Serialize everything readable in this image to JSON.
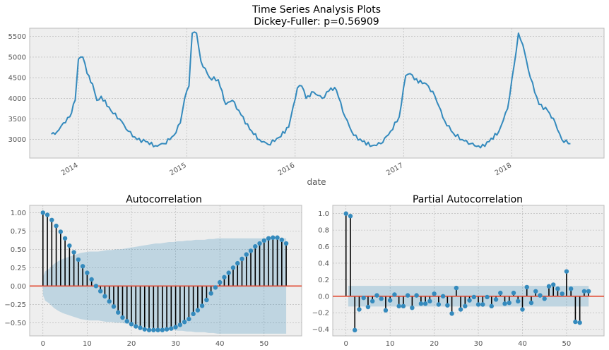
{
  "chart_data": [
    {
      "type": "line",
      "title": "Time Series Analysis Plots",
      "subtitle": "Dickey-Fuller: p=0.56909",
      "xlabel": "date",
      "ylabel": "",
      "grid": true,
      "ylim": [
        2550,
        5700
      ],
      "xlim": [
        2013.55,
        2018.85
      ],
      "x_ticks": [
        2014,
        2015,
        2016,
        2017,
        2018
      ],
      "x_tick_labels": [
        "2014",
        "2015",
        "2016",
        "2017",
        "2018"
      ],
      "y_ticks": [
        3000,
        3500,
        4000,
        4500,
        5000,
        5500
      ],
      "y_tick_labels": [
        "3000",
        "3500",
        "4000",
        "4500",
        "5000",
        "5500"
      ],
      "color": "#348ABD",
      "keypoints": [
        [
          2013.75,
          3130
        ],
        [
          2013.8,
          3180
        ],
        [
          2013.86,
          3400
        ],
        [
          2013.92,
          3550
        ],
        [
          2013.97,
          3950
        ],
        [
          2014.0,
          4950
        ],
        [
          2014.04,
          5000
        ],
        [
          2014.08,
          4600
        ],
        [
          2014.13,
          4350
        ],
        [
          2014.17,
          3950
        ],
        [
          2014.21,
          4050
        ],
        [
          2014.3,
          3700
        ],
        [
          2014.38,
          3500
        ],
        [
          2014.46,
          3200
        ],
        [
          2014.54,
          3000
        ],
        [
          2014.62,
          2950
        ],
        [
          2014.71,
          2850
        ],
        [
          2014.79,
          2900
        ],
        [
          2014.88,
          3100
        ],
        [
          2014.94,
          3400
        ],
        [
          2014.98,
          4000
        ],
        [
          2015.02,
          4300
        ],
        [
          2015.05,
          5580
        ],
        [
          2015.09,
          5580
        ],
        [
          2015.13,
          4900
        ],
        [
          2015.21,
          4500
        ],
        [
          2015.29,
          4450
        ],
        [
          2015.36,
          3850
        ],
        [
          2015.42,
          3950
        ],
        [
          2015.5,
          3600
        ],
        [
          2015.58,
          3250
        ],
        [
          2015.67,
          3000
        ],
        [
          2015.75,
          2880
        ],
        [
          2015.85,
          3050
        ],
        [
          2015.94,
          3300
        ],
        [
          2016.02,
          4250
        ],
        [
          2016.06,
          4300
        ],
        [
          2016.1,
          4000
        ],
        [
          2016.17,
          4150
        ],
        [
          2016.25,
          4000
        ],
        [
          2016.33,
          4250
        ],
        [
          2016.38,
          4200
        ],
        [
          2016.46,
          3550
        ],
        [
          2016.54,
          3100
        ],
        [
          2016.62,
          2950
        ],
        [
          2016.71,
          2850
        ],
        [
          2016.79,
          2900
        ],
        [
          2016.88,
          3200
        ],
        [
          2016.96,
          3550
        ],
        [
          2017.02,
          4550
        ],
        [
          2017.06,
          4600
        ],
        [
          2017.1,
          4450
        ],
        [
          2017.21,
          4350
        ],
        [
          2017.29,
          4050
        ],
        [
          2017.38,
          3450
        ],
        [
          2017.46,
          3150
        ],
        [
          2017.54,
          3000
        ],
        [
          2017.62,
          2900
        ],
        [
          2017.71,
          2800
        ],
        [
          2017.79,
          2950
        ],
        [
          2017.88,
          3200
        ],
        [
          2017.96,
          3750
        ],
        [
          2018.02,
          4800
        ],
        [
          2018.06,
          5580
        ],
        [
          2018.1,
          5300
        ],
        [
          2018.17,
          4500
        ],
        [
          2018.25,
          3850
        ],
        [
          2018.33,
          3700
        ],
        [
          2018.4,
          3400
        ],
        [
          2018.46,
          3000
        ],
        [
          2018.54,
          2900
        ]
      ]
    },
    {
      "type": "bar",
      "title": "Autocorrelation",
      "xlabel": "",
      "ylabel": "",
      "grid": true,
      "xlim": [
        -3,
        58.5
      ],
      "ylim": [
        -0.68,
        1.1
      ],
      "x_ticks": [
        0,
        10,
        20,
        30,
        40,
        50
      ],
      "x_tick_labels": [
        "0",
        "10",
        "20",
        "30",
        "40",
        "50"
      ],
      "y_ticks": [
        -0.5,
        -0.25,
        0,
        0.25,
        0.5,
        0.75,
        1
      ],
      "y_tick_labels": [
        "−0.50",
        "−0.25",
        "0.00",
        "0.25",
        "0.50",
        "0.75",
        "1.00"
      ],
      "lags": [
        0,
        1,
        2,
        3,
        4,
        5,
        6,
        7,
        8,
        9,
        10,
        11,
        12,
        13,
        14,
        15,
        16,
        17,
        18,
        19,
        20,
        21,
        22,
        23,
        24,
        25,
        26,
        27,
        28,
        29,
        30,
        31,
        32,
        33,
        34,
        35,
        36,
        37,
        38,
        39,
        40,
        41,
        42,
        43,
        44,
        45,
        46,
        47,
        48,
        49,
        50,
        51,
        52,
        53,
        54,
        55
      ],
      "values": [
        1.0,
        0.97,
        0.9,
        0.82,
        0.74,
        0.65,
        0.55,
        0.46,
        0.36,
        0.27,
        0.18,
        0.09,
        0.0,
        -0.07,
        -0.14,
        -0.21,
        -0.28,
        -0.36,
        -0.43,
        -0.48,
        -0.52,
        -0.55,
        -0.57,
        -0.59,
        -0.6,
        -0.6,
        -0.6,
        -0.6,
        -0.59,
        -0.58,
        -0.56,
        -0.53,
        -0.49,
        -0.45,
        -0.38,
        -0.33,
        -0.27,
        -0.19,
        -0.1,
        -0.02,
        0.05,
        0.12,
        0.18,
        0.25,
        0.31,
        0.37,
        0.43,
        0.48,
        0.54,
        0.58,
        0.62,
        0.65,
        0.66,
        0.66,
        0.63,
        0.58
      ],
      "confidence_band": [
        0.12,
        0.2,
        0.24,
        0.3,
        0.34,
        0.37,
        0.39,
        0.41,
        0.43,
        0.45,
        0.46,
        0.47,
        0.47,
        0.47,
        0.48,
        0.49,
        0.49,
        0.5,
        0.5,
        0.51,
        0.52,
        0.53,
        0.54,
        0.55,
        0.56,
        0.57,
        0.58,
        0.58,
        0.59,
        0.6,
        0.6,
        0.61,
        0.61,
        0.62,
        0.62,
        0.63,
        0.63,
        0.63,
        0.64,
        0.64,
        0.65,
        0.65,
        0.65,
        0.65,
        0.65,
        0.65,
        0.65,
        0.65,
        0.65,
        0.65,
        0.65,
        0.65,
        0.65,
        0.65,
        0.65,
        0.65
      ],
      "color": "#348ABD",
      "band_color": "#348ABD",
      "zero_line_color": "#E24A33"
    },
    {
      "type": "bar",
      "title": "Partial Autocorrelation",
      "xlabel": "",
      "ylabel": "",
      "grid": true,
      "xlim": [
        -3,
        58.5
      ],
      "ylim": [
        -0.48,
        1.1
      ],
      "x_ticks": [
        0,
        10,
        20,
        30,
        40,
        50
      ],
      "x_tick_labels": [
        "0",
        "10",
        "20",
        "30",
        "40",
        "50"
      ],
      "y_ticks": [
        -0.4,
        -0.2,
        0,
        0.2,
        0.4,
        0.6,
        0.8,
        1
      ],
      "y_tick_labels": [
        "−0.4",
        "−0.2",
        "0.0",
        "0.2",
        "0.4",
        "0.6",
        "0.8",
        "1.0"
      ],
      "lags": [
        0,
        1,
        2,
        3,
        4,
        5,
        6,
        7,
        8,
        9,
        10,
        11,
        12,
        13,
        14,
        15,
        16,
        17,
        18,
        19,
        20,
        21,
        22,
        23,
        24,
        25,
        26,
        27,
        28,
        29,
        30,
        31,
        32,
        33,
        34,
        35,
        36,
        37,
        38,
        39,
        40,
        41,
        42,
        43,
        44,
        45,
        46,
        47,
        48,
        49,
        50,
        51,
        52,
        53,
        54,
        55
      ],
      "values": [
        1.0,
        0.97,
        -0.41,
        -0.16,
        -0.02,
        -0.13,
        -0.06,
        0.01,
        -0.03,
        -0.17,
        -0.05,
        0.02,
        -0.12,
        -0.12,
        0.01,
        -0.14,
        0.01,
        -0.09,
        -0.09,
        -0.06,
        0.03,
        -0.1,
        0.0,
        -0.11,
        -0.21,
        0.1,
        -0.16,
        -0.12,
        -0.05,
        -0.01,
        -0.1,
        -0.1,
        -0.01,
        -0.12,
        -0.04,
        0.04,
        -0.09,
        -0.08,
        0.04,
        -0.06,
        -0.16,
        0.11,
        -0.08,
        0.06,
        0.01,
        -0.03,
        0.12,
        0.14,
        0.09,
        0.03,
        0.3,
        0.09,
        -0.31,
        -0.32,
        0.06,
        0.06
      ],
      "confidence_band": 0.125,
      "color": "#348ABD",
      "band_color": "#348ABD",
      "zero_line_color": "#E24A33"
    }
  ]
}
